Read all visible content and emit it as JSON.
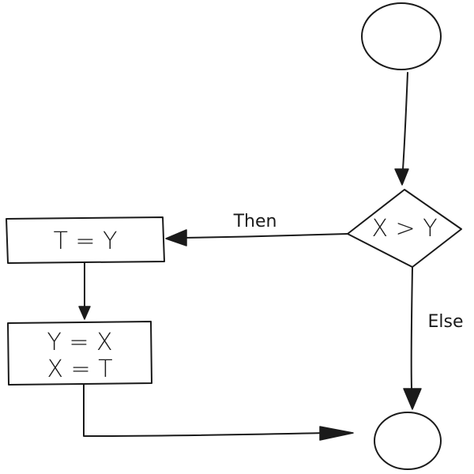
{
  "nodes": {
    "start": "",
    "decision": "X > Y",
    "assign_t": "T = Y",
    "swap_line1": "Y = X",
    "swap_line2": "X = T",
    "end": ""
  },
  "edges": {
    "then_label": "Then",
    "else_label": "Else"
  },
  "colors": {
    "ink": "#1a1a1a",
    "background": "#ffffff"
  }
}
